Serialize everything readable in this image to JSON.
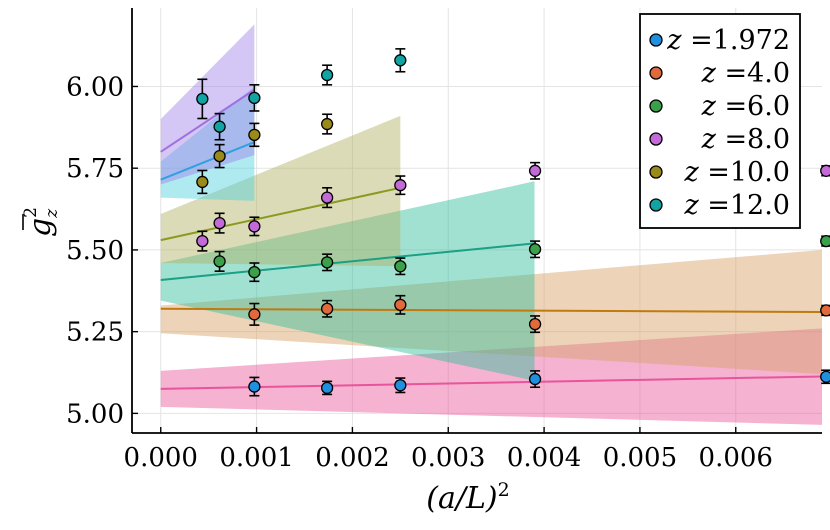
{
  "chart_data": {
    "type": "scatter",
    "title": "",
    "xlabel": "(a/L)",
    "xlabel_superscript": "2",
    "ylabel": "g",
    "ylabel_superscript": "2",
    "ylabel_subscript": "z",
    "xlim": [
      -0.0003,
      0.0069
    ],
    "ylim": [
      4.94,
      6.24
    ],
    "xticks": [
      0.0,
      0.001,
      0.002,
      0.003,
      0.004,
      0.005,
      0.006
    ],
    "xtick_labels": [
      "0.000",
      "0.001",
      "0.002",
      "0.003",
      "0.004",
      "0.005",
      "0.006"
    ],
    "yticks": [
      5.0,
      5.25,
      5.5,
      5.75,
      6.0
    ],
    "ytick_labels": [
      "5.00",
      "5.25",
      "5.50",
      "5.75",
      "6.00"
    ],
    "grid": true,
    "legend_position": "top-right",
    "series": [
      {
        "name": "z =1.972",
        "label_var": "z",
        "label_val": "=1.972",
        "marker_color": "#1f8fe0",
        "band_color": "#e8559a",
        "line_color": "#e8559a",
        "x": [
          0.000977,
          0.001736,
          0.0025,
          0.003906,
          0.006944
        ],
        "y": [
          5.082,
          5.078,
          5.086,
          5.105,
          5.112
        ],
        "err": [
          0.028,
          0.02,
          0.022,
          0.025,
          0.02
        ],
        "fit": {
          "x": [
            0.0,
            0.0069
          ],
          "y": [
            5.075,
            5.113
          ]
        },
        "band": {
          "x": [
            0.0,
            0.0069
          ],
          "lower": [
            5.02,
            4.965
          ],
          "upper": [
            5.13,
            5.26
          ]
        }
      },
      {
        "name": "z =4.0",
        "label_var": "z",
        "label_val": "=4.0",
        "marker_color": "#e06a3c",
        "band_color": "#d7a064",
        "line_color": "#c07a10",
        "x": [
          0.000977,
          0.001736,
          0.0025,
          0.003906,
          0.006944
        ],
        "y": [
          5.303,
          5.32,
          5.332,
          5.273,
          5.315
        ],
        "err": [
          0.033,
          0.025,
          0.028,
          0.025,
          0.015
        ],
        "fit": {
          "x": [
            0.0,
            0.0069
          ],
          "y": [
            5.32,
            5.31
          ]
        },
        "band": {
          "x": [
            0.0,
            0.0069
          ],
          "lower": [
            5.245,
            5.12
          ],
          "upper": [
            5.33,
            5.5
          ]
        }
      },
      {
        "name": "z =6.0",
        "label_var": "z",
        "label_val": "=6.0",
        "marker_color": "#3ba04a",
        "band_color": "#2ebd9a",
        "line_color": "#1aa085",
        "x": [
          0.000614,
          0.000977,
          0.001736,
          0.0025,
          0.003906,
          0.006944
        ],
        "y": [
          5.465,
          5.432,
          5.462,
          5.45,
          5.502,
          5.527
        ],
        "err": [
          0.03,
          0.028,
          0.025,
          0.025,
          0.025,
          0.015
        ],
        "fit": {
          "x": [
            0.0,
            0.0039
          ],
          "y": [
            5.408,
            5.52
          ]
        },
        "band": {
          "x": [
            0.0,
            0.0039
          ],
          "lower": [
            5.345,
            5.1
          ],
          "upper": [
            5.46,
            5.71
          ]
        }
      },
      {
        "name": "z =8.0",
        "label_var": "z",
        "label_val": "=8.0",
        "marker_color": "#c46ad8",
        "band_color": "#b0b060",
        "line_color": "#8a9a20",
        "x": [
          0.000434,
          0.000614,
          0.000977,
          0.001736,
          0.0025,
          0.003906,
          0.006944
        ],
        "y": [
          5.527,
          5.582,
          5.572,
          5.66,
          5.698,
          5.742,
          5.742
        ],
        "err": [
          0.03,
          0.03,
          0.028,
          0.03,
          0.028,
          0.025,
          0.015
        ],
        "fit": {
          "x": [
            0.0,
            0.0025
          ],
          "y": [
            5.53,
            5.69
          ]
        },
        "band": {
          "x": [
            0.0,
            0.0025
          ],
          "lower": [
            5.46,
            5.45
          ],
          "upper": [
            5.61,
            5.91
          ]
        }
      },
      {
        "name": "z =10.0",
        "label_var": "z",
        "label_val": "=10.0",
        "marker_color": "#9a8a1a",
        "band_color": "#4fd0e0",
        "line_color": "#30a0e0",
        "x": [
          0.000434,
          0.000614,
          0.000977,
          0.001736
        ],
        "y": [
          5.708,
          5.787,
          5.852,
          5.885
        ],
        "err": [
          0.035,
          0.035,
          0.035,
          0.03
        ],
        "fit": {
          "x": [
            0.0,
            0.000977
          ],
          "y": [
            5.715,
            5.83
          ]
        },
        "band": {
          "x": [
            0.0,
            0.000977
          ],
          "lower": [
            5.66,
            5.65
          ],
          "upper": [
            5.77,
            6.0
          ]
        }
      },
      {
        "name": "z =12.0",
        "label_var": "z",
        "label_val": "=12.0",
        "marker_color": "#12a3a3",
        "band_color": "#a080e8",
        "line_color": "#a070e0",
        "x": [
          0.000434,
          0.000614,
          0.000977,
          0.001736,
          0.0025
        ],
        "y": [
          5.962,
          5.877,
          5.965,
          6.035,
          6.08
        ],
        "err": [
          0.06,
          0.04,
          0.04,
          0.03,
          0.035
        ],
        "fit": {
          "x": [
            0.0,
            0.000977
          ],
          "y": [
            5.8,
            5.99
          ]
        },
        "band": {
          "x": [
            0.0,
            0.000977
          ],
          "lower": [
            5.7,
            5.79
          ],
          "upper": [
            5.9,
            6.19
          ]
        }
      }
    ]
  }
}
